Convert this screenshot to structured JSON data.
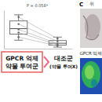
{
  "chart_data": {
    "type": "box",
    "annotation": "P = 0.058*",
    "categories": [
      null,
      null
    ],
    "tick_labels": false,
    "ylim": [
      0,
      100
    ],
    "boxes": [
      {
        "min": 22,
        "q1": 38,
        "median": 52,
        "q3": 72,
        "max": 88
      },
      {
        "min": 4,
        "q1": 9,
        "median": 14,
        "q3": 21,
        "max": 30
      }
    ],
    "points": [
      [
        82,
        64,
        50,
        42,
        30
      ],
      [
        26,
        19,
        13,
        10,
        7
      ]
    ],
    "group_labels": [
      [
        "GPCR 억제",
        "약물 투여군"
      ],
      [
        "대조군",
        "(약물 투여X)"
      ]
    ],
    "colors": [
      "#555555",
      "#555555"
    ]
  },
  "panel_c": {
    "label": "C",
    "title": "취",
    "image_label": "GPCR 억제"
  }
}
